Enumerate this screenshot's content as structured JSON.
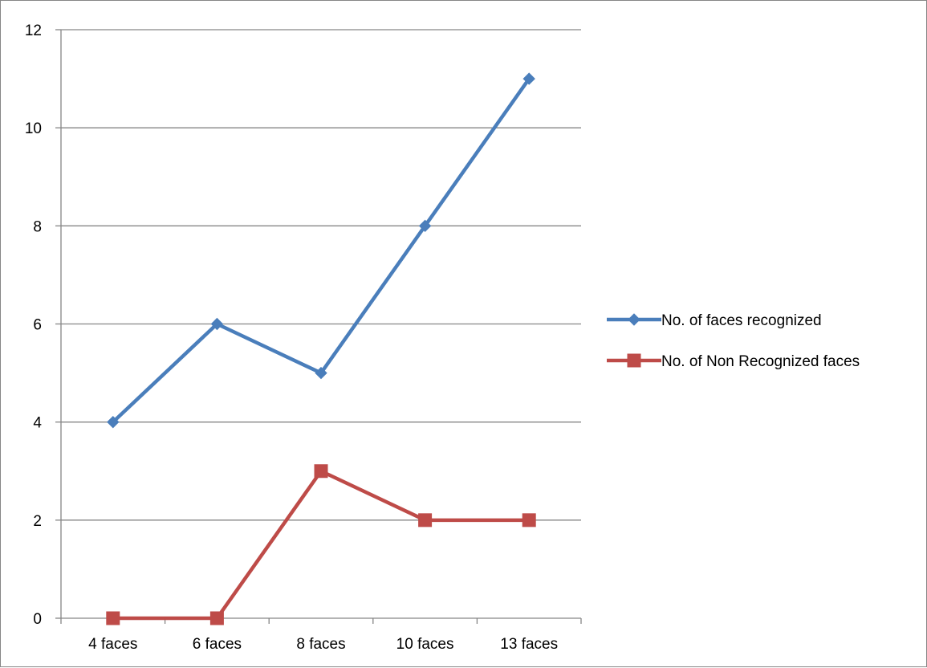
{
  "chart_data": {
    "type": "line",
    "title": "",
    "xlabel": "",
    "ylabel": "",
    "categories": [
      "4 faces",
      "6 faces",
      "8 faces",
      "10 faces",
      "13 faces"
    ],
    "ylim": [
      0,
      12
    ],
    "yticks": [
      0,
      2,
      4,
      6,
      8,
      10,
      12
    ],
    "grid": true,
    "legend_position": "right",
    "series": [
      {
        "name": "No. of faces recognized",
        "values": [
          4,
          6,
          5,
          8,
          11
        ],
        "color": "#4a7ebb",
        "marker": "diamond"
      },
      {
        "name": "No. of Non Recognized faces",
        "values": [
          0,
          0,
          3,
          2,
          2
        ],
        "color": "#be4b48",
        "marker": "square"
      }
    ]
  }
}
